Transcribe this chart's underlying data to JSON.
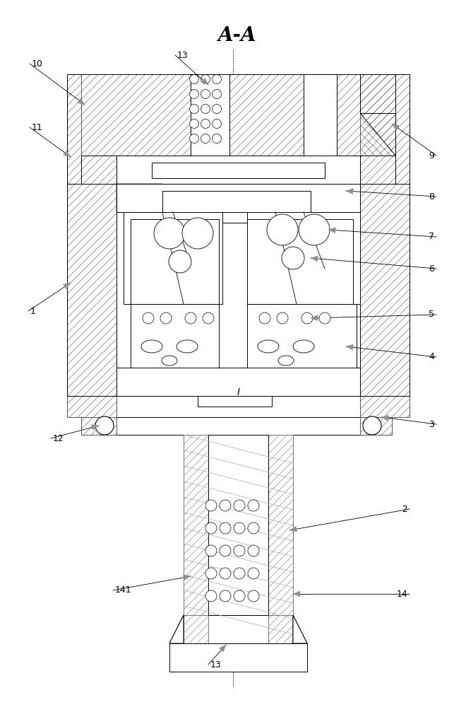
{
  "bg_color": "#ffffff",
  "title": "A-A",
  "lw": 0.7,
  "hatch_lw": 0.4,
  "arrow_color": "#888888",
  "label_fontsize": 9,
  "title_fontsize": 20
}
